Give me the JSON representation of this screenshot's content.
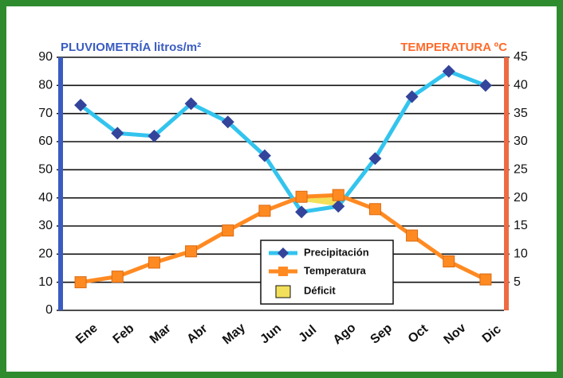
{
  "chart_data": {
    "type": "line",
    "title_left": "PLUVIOMETRÍA litros/m²",
    "title_right": "TEMPERATURA  ºC",
    "categories": [
      "Ene",
      "Feb",
      "Mar",
      "Abr",
      "May",
      "Jun",
      "Jul",
      "Ago",
      "Sep",
      "Oct",
      "Nov",
      "Dic"
    ],
    "series": [
      {
        "name": "Precipitación",
        "color": "#33c4ee",
        "marker_color": "#33449a",
        "marker": "diamond",
        "axis": "y",
        "values": [
          73,
          63,
          62,
          73.5,
          67,
          55,
          35,
          37,
          54,
          76,
          85,
          80
        ]
      },
      {
        "name": "Temperatura",
        "color": "#ff8a22",
        "marker_color": "#ff8a22",
        "marker": "square",
        "axis": "y2",
        "values": [
          5,
          6,
          8.5,
          10.5,
          14.2,
          17.7,
          20.2,
          20.5,
          18,
          13.3,
          8.7,
          5.5
        ]
      }
    ],
    "deficit": {
      "name": "Déficit",
      "color": "#f2e05a"
    },
    "ylim": [
      0,
      90
    ],
    "yticks": [
      0,
      10,
      20,
      30,
      40,
      50,
      60,
      70,
      80,
      90
    ],
    "y2lim": [
      0,
      45
    ],
    "y2ticks": [
      5,
      10,
      15,
      20,
      25,
      30,
      35,
      40,
      45
    ],
    "grid": true
  }
}
